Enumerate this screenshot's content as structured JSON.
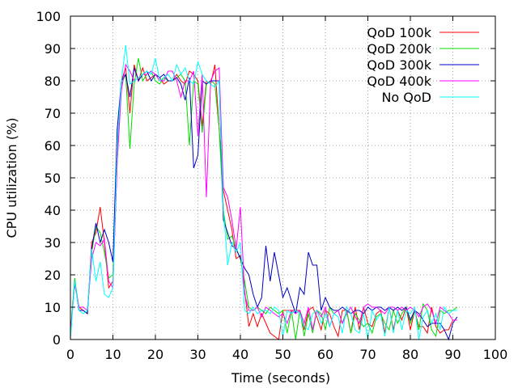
{
  "chart_data": {
    "type": "line",
    "title": "",
    "xlabel": "Time (seconds)",
    "ylabel": "CPU utilization (%)",
    "xlim": [
      0,
      100
    ],
    "ylim": [
      0,
      100
    ],
    "xticks": [
      0,
      10,
      20,
      30,
      40,
      50,
      60,
      70,
      80,
      90,
      100
    ],
    "yticks": [
      0,
      10,
      20,
      30,
      40,
      50,
      60,
      70,
      80,
      90,
      100
    ],
    "grid": true,
    "legend_position": "top-right",
    "series": [
      {
        "name": "QoD 100k",
        "color": "#ff0000",
        "x": [
          0,
          1,
          2,
          3,
          4,
          5,
          6,
          7,
          8,
          9,
          10,
          11,
          12,
          13,
          14,
          15,
          16,
          17,
          18,
          19,
          20,
          21,
          22,
          23,
          24,
          25,
          26,
          27,
          28,
          29,
          30,
          31,
          32,
          33,
          34,
          35,
          36,
          37,
          38,
          39,
          40,
          41,
          42,
          43,
          44,
          45,
          46,
          47,
          48,
          49,
          50,
          51,
          52,
          53,
          54,
          55,
          56,
          57,
          58,
          59,
          60,
          61,
          62,
          63,
          64,
          65,
          66,
          67,
          68,
          69,
          70,
          71,
          72,
          73,
          74,
          75,
          76,
          77,
          78,
          79,
          80,
          81,
          82,
          83,
          84,
          85,
          86,
          87,
          88,
          89,
          90,
          91
        ],
        "y": [
          1,
          18,
          10,
          9,
          8,
          30,
          33,
          41,
          30,
          16,
          18,
          55,
          80,
          84,
          70,
          85,
          80,
          84,
          80,
          81,
          82,
          81,
          79,
          80,
          80,
          82,
          80,
          79,
          83,
          82,
          80,
          66,
          80,
          79,
          85,
          65,
          46,
          40,
          34,
          25,
          26,
          15,
          4,
          8,
          4,
          8,
          5,
          2,
          1,
          0,
          9,
          9,
          9,
          9,
          9,
          3,
          9,
          10,
          7,
          3,
          9,
          8,
          4,
          1,
          9,
          9,
          2,
          10,
          3,
          10,
          5,
          4,
          8,
          9,
          2,
          10,
          3,
          9,
          6,
          10,
          3,
          9,
          4,
          4,
          2,
          10,
          4,
          2,
          3,
          3,
          6,
          6
        ]
      },
      {
        "name": "QoD 200k",
        "color": "#00dd00",
        "x": [
          0,
          1,
          2,
          3,
          4,
          5,
          6,
          7,
          8,
          9,
          10,
          11,
          12,
          13,
          14,
          15,
          16,
          17,
          18,
          19,
          20,
          21,
          22,
          23,
          24,
          25,
          26,
          27,
          28,
          29,
          30,
          31,
          32,
          33,
          34,
          35,
          36,
          37,
          38,
          39,
          40,
          41,
          42,
          43,
          44,
          45,
          46,
          47,
          48,
          49,
          50,
          51,
          52,
          53,
          54,
          55,
          56,
          57,
          58,
          59,
          60,
          61,
          62,
          63,
          64,
          65,
          66,
          67,
          68,
          69,
          70,
          71,
          72,
          73,
          74,
          75,
          76,
          77,
          78,
          79,
          80,
          81,
          82,
          83,
          84,
          85,
          86,
          87,
          88,
          89,
          90,
          91
        ],
        "y": [
          2,
          19,
          9,
          9,
          8,
          27,
          35,
          33,
          27,
          19,
          20,
          60,
          79,
          82,
          59,
          79,
          87,
          80,
          82,
          83,
          80,
          79,
          81,
          80,
          80,
          81,
          82,
          80,
          60,
          80,
          79,
          64,
          79,
          80,
          79,
          65,
          40,
          31,
          32,
          28,
          25,
          18,
          10,
          9,
          10,
          9,
          8,
          10,
          9,
          8,
          9,
          2,
          9,
          0,
          9,
          1,
          8,
          2,
          9,
          8,
          3,
          10,
          8,
          9,
          5,
          9,
          2,
          8,
          6,
          4,
          5,
          2,
          7,
          8,
          5,
          3,
          9,
          5,
          8,
          10,
          5,
          9,
          3,
          11,
          9,
          3,
          1,
          9,
          8,
          9,
          9,
          10
        ]
      },
      {
        "name": "QoD 300k",
        "color": "#0000c0",
        "x": [
          0,
          1,
          2,
          3,
          4,
          5,
          6,
          7,
          8,
          9,
          10,
          11,
          12,
          13,
          14,
          15,
          16,
          17,
          18,
          19,
          20,
          21,
          22,
          23,
          24,
          25,
          26,
          27,
          28,
          29,
          30,
          31,
          32,
          33,
          34,
          35,
          36,
          37,
          38,
          39,
          40,
          41,
          42,
          43,
          44,
          45,
          46,
          47,
          48,
          49,
          50,
          51,
          52,
          53,
          54,
          55,
          56,
          57,
          58,
          59,
          60,
          61,
          62,
          63,
          64,
          65,
          66,
          67,
          68,
          69,
          70,
          71,
          72,
          73,
          74,
          75,
          76,
          77,
          78,
          79,
          80,
          81,
          82,
          83,
          84,
          85,
          86,
          87,
          88,
          89,
          90,
          91
        ],
        "y": [
          1,
          18,
          9,
          9,
          8,
          28,
          36,
          30,
          34,
          30,
          24,
          65,
          80,
          82,
          75,
          84,
          80,
          82,
          83,
          80,
          82,
          81,
          82,
          80,
          80,
          81,
          79,
          74,
          81,
          53,
          57,
          80,
          79,
          80,
          80,
          80,
          37,
          33,
          29,
          28,
          25,
          22,
          20,
          14,
          10,
          13,
          29,
          18,
          27,
          20,
          13,
          16,
          12,
          8,
          16,
          14,
          27,
          23,
          23,
          9,
          13,
          10,
          9,
          9,
          10,
          9,
          8,
          9,
          9,
          8,
          10,
          9,
          10,
          10,
          9,
          10,
          9,
          10,
          9,
          10,
          6,
          9,
          8,
          6,
          4,
          5,
          5,
          5,
          3,
          0,
          5,
          7
        ]
      },
      {
        "name": "QoD 400k",
        "color": "#ff00ff",
        "x": [
          0,
          1,
          2,
          3,
          4,
          5,
          6,
          7,
          8,
          9,
          10,
          11,
          12,
          13,
          14,
          15,
          16,
          17,
          18,
          19,
          20,
          21,
          22,
          23,
          24,
          25,
          26,
          27,
          28,
          29,
          30,
          31,
          32,
          33,
          34,
          35,
          36,
          37,
          38,
          39,
          40,
          41,
          42,
          43,
          44,
          45,
          46,
          47,
          48,
          49,
          50,
          51,
          52,
          53,
          54,
          55,
          56,
          57,
          58,
          59,
          60,
          61,
          62,
          63,
          64,
          65,
          66,
          67,
          68,
          69,
          70,
          71,
          72,
          73,
          74,
          75,
          76,
          77,
          78,
          79,
          80,
          81,
          82,
          83,
          84,
          85,
          86,
          87,
          88,
          89,
          90,
          91
        ],
        "y": [
          2,
          17,
          10,
          10,
          9,
          25,
          30,
          29,
          31,
          18,
          16,
          55,
          77,
          85,
          83,
          80,
          81,
          82,
          82,
          83,
          82,
          80,
          80,
          83,
          83,
          80,
          75,
          80,
          80,
          83,
          63,
          82,
          44,
          80,
          83,
          84,
          47,
          44,
          37,
          28,
          41,
          14,
          9,
          9,
          10,
          7,
          10,
          9,
          8,
          7,
          8,
          5,
          9,
          8,
          9,
          5,
          10,
          3,
          9,
          7,
          10,
          4,
          8,
          9,
          5,
          8,
          10,
          7,
          5,
          10,
          11,
          10,
          10,
          9,
          8,
          10,
          10,
          9,
          10,
          9,
          10,
          9,
          7,
          10,
          11,
          9,
          5,
          10,
          9,
          8,
          6,
          6
        ]
      },
      {
        "name": "No QoD",
        "color": "#00ffff",
        "x": [
          0,
          1,
          2,
          3,
          4,
          5,
          6,
          7,
          8,
          9,
          10,
          11,
          12,
          13,
          14,
          15,
          16,
          17,
          18,
          19,
          20,
          21,
          22,
          23,
          24,
          25,
          26,
          27,
          28,
          29,
          30,
          31,
          32,
          33,
          34,
          35,
          36,
          37,
          38,
          39,
          40,
          41,
          42,
          43,
          44,
          45,
          46,
          47,
          48,
          49,
          50,
          51,
          52,
          53,
          54,
          55,
          56,
          57,
          58,
          59,
          60,
          61,
          62,
          63,
          64,
          65,
          66,
          67,
          68,
          69,
          70,
          71,
          72,
          73,
          74,
          75,
          76,
          77,
          78,
          79,
          80,
          81,
          82,
          83,
          84,
          85,
          86,
          87,
          88,
          89,
          90,
          91
        ],
        "y": [
          0,
          18,
          9,
          8,
          9,
          28,
          18,
          24,
          14,
          13,
          16,
          60,
          80,
          91,
          79,
          80,
          81,
          82,
          83,
          82,
          87,
          80,
          81,
          82,
          80,
          85,
          82,
          84,
          80,
          79,
          86,
          82,
          80,
          79,
          78,
          80,
          40,
          23,
          30,
          27,
          30,
          9,
          8,
          10,
          8,
          9,
          9,
          8,
          10,
          9,
          1,
          9,
          8,
          9,
          8,
          4,
          3,
          8,
          9,
          5,
          8,
          4,
          8,
          7,
          2,
          10,
          8,
          3,
          2,
          8,
          0,
          9,
          6,
          8,
          1,
          10,
          2,
          9,
          3,
          9,
          8,
          10,
          0,
          7,
          9,
          5,
          8,
          3,
          10,
          8,
          9,
          9
        ]
      }
    ]
  }
}
